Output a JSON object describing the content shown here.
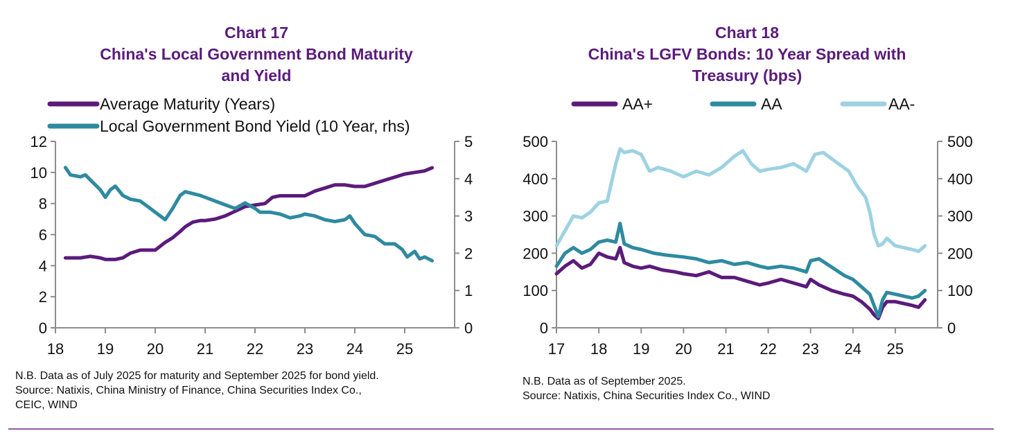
{
  "colors": {
    "purple": "#5b1b7b",
    "teal": "#2e8aa0",
    "lightblue": "#9dd2e2",
    "axis": "#8c8c8c",
    "rule": "#8a5aaa"
  },
  "chart_data": [
    {
      "type": "line",
      "title_line1": "Chart 17",
      "title_line2": "China's Local Government Bond Maturity",
      "title_line3": "and Yield",
      "xlim": [
        18.0,
        26.0
      ],
      "x_ticks": [
        "18",
        "19",
        "20",
        "21",
        "22",
        "23",
        "24",
        "25"
      ],
      "ylim": [
        0,
        12
      ],
      "y_ticks": [
        "0",
        "2",
        "4",
        "6",
        "8",
        "10",
        "12"
      ],
      "y2lim": [
        0,
        5
      ],
      "y2_ticks": [
        "0",
        "1",
        "2",
        "3",
        "4",
        "5"
      ],
      "series": [
        {
          "name": "Average Maturity (Years)",
          "axis": "left",
          "color": "purple",
          "x": [
            18.2,
            18.5,
            18.7,
            18.9,
            19.0,
            19.2,
            19.35,
            19.5,
            19.7,
            19.9,
            20.0,
            20.2,
            20.35,
            20.5,
            20.6,
            20.75,
            20.9,
            21.0,
            21.2,
            21.4,
            21.6,
            21.8,
            22.0,
            22.2,
            22.35,
            22.5,
            22.7,
            22.9,
            23.0,
            23.2,
            23.4,
            23.6,
            23.8,
            24.0,
            24.2,
            24.4,
            24.6,
            24.8,
            25.0,
            25.2,
            25.4,
            25.55
          ],
          "y": [
            4.5,
            4.5,
            4.6,
            4.5,
            4.4,
            4.4,
            4.5,
            4.8,
            5.0,
            5.0,
            5.0,
            5.5,
            5.8,
            6.2,
            6.5,
            6.8,
            6.9,
            6.9,
            7.0,
            7.2,
            7.5,
            7.8,
            7.9,
            8.0,
            8.4,
            8.5,
            8.5,
            8.5,
            8.5,
            8.8,
            9.0,
            9.2,
            9.2,
            9.1,
            9.1,
            9.3,
            9.5,
            9.7,
            9.9,
            10.0,
            10.1,
            10.3
          ]
        },
        {
          "name": "Local Government Bond Yield (10 Year, rhs)",
          "axis": "right",
          "color": "teal",
          "x": [
            18.2,
            18.3,
            18.5,
            18.6,
            18.75,
            18.9,
            19.0,
            19.1,
            19.2,
            19.35,
            19.5,
            19.7,
            19.9,
            20.0,
            20.2,
            20.35,
            20.5,
            20.6,
            20.75,
            20.9,
            21.0,
            21.2,
            21.4,
            21.6,
            21.8,
            22.0,
            22.1,
            22.3,
            22.5,
            22.7,
            22.9,
            23.0,
            23.2,
            23.4,
            23.6,
            23.8,
            23.9,
            24.0,
            24.2,
            24.4,
            24.6,
            24.8,
            24.95,
            25.05,
            25.2,
            25.3,
            25.4,
            25.55
          ],
          "y": [
            4.3,
            4.1,
            4.05,
            4.1,
            3.9,
            3.7,
            3.5,
            3.7,
            3.8,
            3.55,
            3.45,
            3.4,
            3.2,
            3.1,
            2.9,
            3.2,
            3.55,
            3.65,
            3.6,
            3.55,
            3.5,
            3.4,
            3.3,
            3.2,
            3.35,
            3.2,
            3.1,
            3.1,
            3.05,
            2.95,
            3.0,
            3.05,
            3.0,
            2.9,
            2.85,
            2.9,
            3.0,
            2.8,
            2.5,
            2.45,
            2.25,
            2.25,
            2.1,
            1.9,
            2.05,
            1.85,
            1.9,
            1.8
          ]
        }
      ],
      "note": "N.B. Data as of July 2025 for maturity and September 2025 for bond yield.",
      "source": "Source: Natixis, China Ministry of Finance, China Securities Index Co.,",
      "source_cont": "CEIC, WIND"
    },
    {
      "type": "line",
      "title_line1": "Chart 18",
      "title_line2": "China's LGFV Bonds: 10 Year Spread with",
      "title_line3": "Treasury (bps)",
      "xlim": [
        17.0,
        26.0
      ],
      "x_ticks": [
        "17",
        "18",
        "19",
        "20",
        "21",
        "22",
        "23",
        "24",
        "25"
      ],
      "ylim": [
        0,
        500
      ],
      "y_ticks": [
        "0",
        "100",
        "200",
        "300",
        "400",
        "500"
      ],
      "y2lim": [
        0,
        500
      ],
      "y2_ticks": [
        "0",
        "100",
        "200",
        "300",
        "400",
        "500"
      ],
      "series": [
        {
          "name": "AA+",
          "color": "purple",
          "x": [
            17.0,
            17.2,
            17.4,
            17.6,
            17.8,
            18.0,
            18.2,
            18.4,
            18.5,
            18.6,
            18.8,
            19.0,
            19.2,
            19.5,
            19.8,
            20.0,
            20.3,
            20.6,
            20.9,
            21.2,
            21.5,
            21.8,
            22.0,
            22.3,
            22.6,
            22.9,
            23.0,
            23.2,
            23.5,
            23.8,
            24.0,
            24.2,
            24.4,
            24.5,
            24.6,
            24.7,
            24.8,
            25.0,
            25.2,
            25.4,
            25.55,
            25.7
          ],
          "y": [
            145,
            165,
            180,
            160,
            170,
            200,
            190,
            185,
            215,
            175,
            165,
            160,
            165,
            155,
            150,
            145,
            140,
            150,
            135,
            135,
            125,
            115,
            120,
            130,
            120,
            110,
            130,
            115,
            100,
            90,
            85,
            70,
            50,
            35,
            25,
            55,
            70,
            70,
            65,
            60,
            55,
            75
          ]
        },
        {
          "name": "AA",
          "color": "teal",
          "x": [
            17.0,
            17.2,
            17.4,
            17.6,
            17.8,
            18.0,
            18.2,
            18.4,
            18.5,
            18.6,
            18.8,
            19.0,
            19.3,
            19.6,
            20.0,
            20.3,
            20.6,
            20.9,
            21.2,
            21.5,
            21.8,
            22.0,
            22.3,
            22.6,
            22.9,
            23.0,
            23.2,
            23.4,
            23.6,
            23.8,
            24.0,
            24.2,
            24.4,
            24.5,
            24.6,
            24.7,
            24.8,
            25.0,
            25.2,
            25.4,
            25.55,
            25.7
          ],
          "y": [
            165,
            200,
            215,
            200,
            210,
            230,
            235,
            230,
            280,
            225,
            215,
            210,
            200,
            195,
            190,
            185,
            175,
            180,
            170,
            175,
            165,
            160,
            165,
            160,
            150,
            180,
            185,
            170,
            155,
            140,
            130,
            110,
            90,
            60,
            30,
            75,
            95,
            90,
            85,
            80,
            85,
            100
          ]
        },
        {
          "name": "AA-",
          "color": "lightblue",
          "x": [
            17.0,
            17.2,
            17.4,
            17.6,
            17.8,
            18.0,
            18.2,
            18.3,
            18.4,
            18.5,
            18.6,
            18.8,
            19.0,
            19.2,
            19.4,
            19.7,
            20.0,
            20.3,
            20.6,
            20.9,
            21.2,
            21.4,
            21.6,
            21.8,
            22.0,
            22.3,
            22.6,
            22.9,
            23.1,
            23.3,
            23.6,
            23.9,
            24.1,
            24.3,
            24.4,
            24.5,
            24.6,
            24.7,
            24.8,
            25.0,
            25.2,
            25.4,
            25.55,
            25.7
          ],
          "y": [
            220,
            260,
            300,
            295,
            310,
            335,
            340,
            390,
            440,
            480,
            470,
            475,
            465,
            420,
            430,
            420,
            405,
            420,
            410,
            430,
            460,
            475,
            440,
            420,
            425,
            430,
            440,
            420,
            465,
            470,
            445,
            420,
            380,
            350,
            310,
            250,
            220,
            225,
            240,
            220,
            215,
            210,
            205,
            220
          ]
        }
      ],
      "note": "N.B. Data as of September 2025.",
      "source": "Source: Natixis, China Securities Index Co., WIND"
    }
  ]
}
